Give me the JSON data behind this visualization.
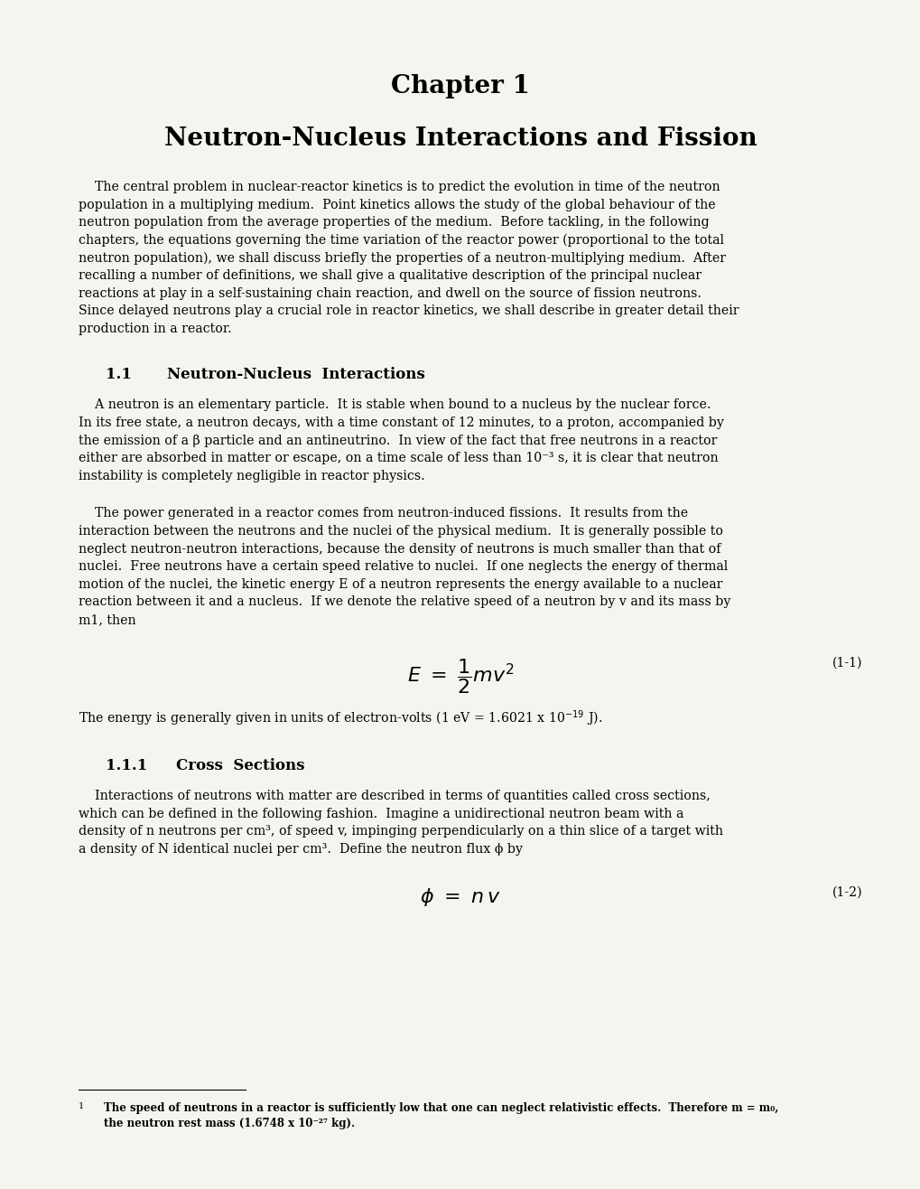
{
  "bg_color": "#f5f5f0",
  "page_width": 10.2,
  "page_height": 13.16,
  "chapter_title": "Chapter 1",
  "chapter_subtitle": "Neutron-Nucleus Interactions and Fission",
  "para1_lines": [
    "    The central problem in nuclear-reactor kinetics is to predict the evolution in time of the neutron",
    "population in a multiplying medium.  Point kinetics allows the study of the global behaviour of the",
    "neutron population from the average properties of the medium.  Before tackling, in the following",
    "chapters, the equations governing the time variation of the reactor power (proportional to the total",
    "neutron population), we shall discuss briefly the properties of a neutron-multiplying medium.  After",
    "recalling a number of definitions, we shall give a qualitative description of the principal nuclear",
    "reactions at play in a self-sustaining chain reaction, and dwell on the source of fission neutrons.",
    "Since delayed neutrons play a crucial role in reactor kinetics, we shall describe in greater detail their",
    "production in a reactor."
  ],
  "sec11_label": "1.1",
  "sec11_title": "Neutron-Nucleus  Interactions",
  "para2_lines": [
    "    A neutron is an elementary particle.  It is stable when bound to a nucleus by the nuclear force.",
    "In its free state, a neutron decays, with a time constant of 12 minutes, to a proton, accompanied by",
    "the emission of a β particle and an antineutrino.  In view of the fact that free neutrons in a reactor",
    "either are absorbed in matter or escape, on a time scale of less than 10⁻³ s, it is clear that neutron",
    "instability is completely negligible in reactor physics."
  ],
  "para3_lines": [
    "    The power generated in a reactor comes from neutron-induced fissions.  It results from the",
    "interaction between the neutrons and the nuclei of the physical medium.  It is generally possible to",
    "neglect neutron-neutron interactions, because the density of neutrons is much smaller than that of",
    "nuclei.  Free neutrons have a certain speed relative to nuclei.  If one neglects the energy of thermal",
    "motion of the nuclei, the kinetic energy E of a neutron represents the energy available to a nuclear",
    "reaction between it and a nucleus.  If we denote the relative speed of a neutron by v and its mass by",
    "m1, then"
  ],
  "eq1_label": "(1-1)",
  "post_eq1": "The energy is generally given in units of electron-volts (1 eV = 1.6021 x 10",
  "post_eq1_exp": "-19",
  "post_eq1_end": " J).",
  "sec111_label": "1.1.1",
  "sec111_title": "Cross  Sections",
  "para4_lines": [
    "    Interactions of neutrons with matter are described in terms of quantities called cross sections,",
    "which can be defined in the following fashion.  Imagine a unidirectional neutron beam with a",
    "density of n neutrons per cm³, of speed v, impinging perpendicularly on a thin slice of a target with",
    "a density of N identical nuclei per cm³.  Define the neutron flux ϕ by"
  ],
  "eq2_label": "(1-2)",
  "footnote_num": "1",
  "footnote_line1": "The speed of neutrons in a reactor is sufficiently low that one can neglect relativistic effects.  Therefore m = m₀,",
  "footnote_line2": "the neutron rest mass (1.6748 x 10⁻²⁷ kg)."
}
